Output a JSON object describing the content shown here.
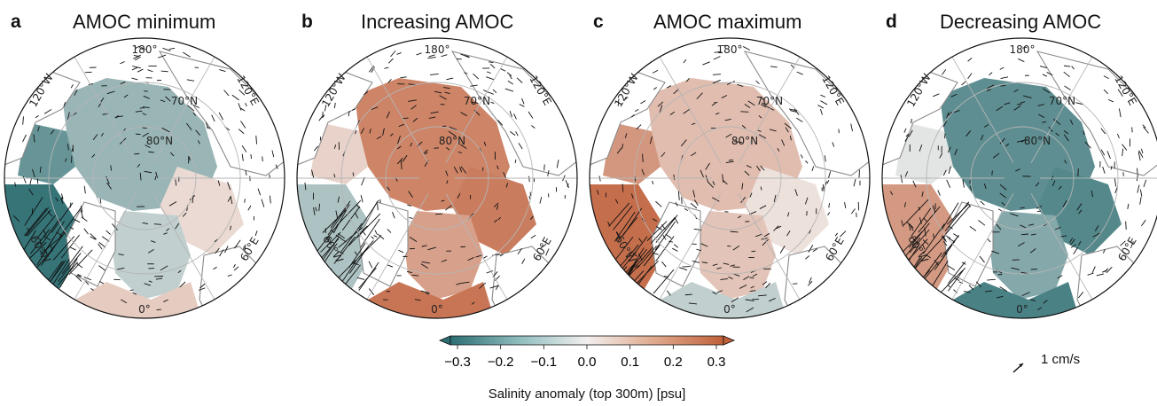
{
  "panels": [
    {
      "letter": "a",
      "title": "AMOC minimum",
      "anomaly": "minimum"
    },
    {
      "letter": "b",
      "title": "Increasing AMOC",
      "anomaly": "increasing"
    },
    {
      "letter": "c",
      "title": "AMOC maximum",
      "anomaly": "maximum"
    },
    {
      "letter": "d",
      "title": "Decreasing AMOC",
      "anomaly": "decreasing"
    }
  ],
  "map_labels": {
    "lon_180": "180°",
    "lon_120w": "120°W",
    "lon_120e": "120°E",
    "lon_60w": "60°W",
    "lon_60e": "60°E",
    "lon_0": "0°",
    "lat_70": "70°N",
    "lat_80": "80°N"
  },
  "colorbar": {
    "ticks": [
      "−0.3",
      "−0.2",
      "−0.1",
      "0.0",
      "0.1",
      "0.2",
      "0.3"
    ],
    "range": [
      -0.3,
      0.3
    ],
    "label": "Salinity anomaly (top 300m) [psu]",
    "colors": {
      "negative": "#2c6e72",
      "neutral": "#f2efee",
      "positive": "#c0603a"
    }
  },
  "reference_arrow": {
    "label": "1 cm/s"
  }
}
